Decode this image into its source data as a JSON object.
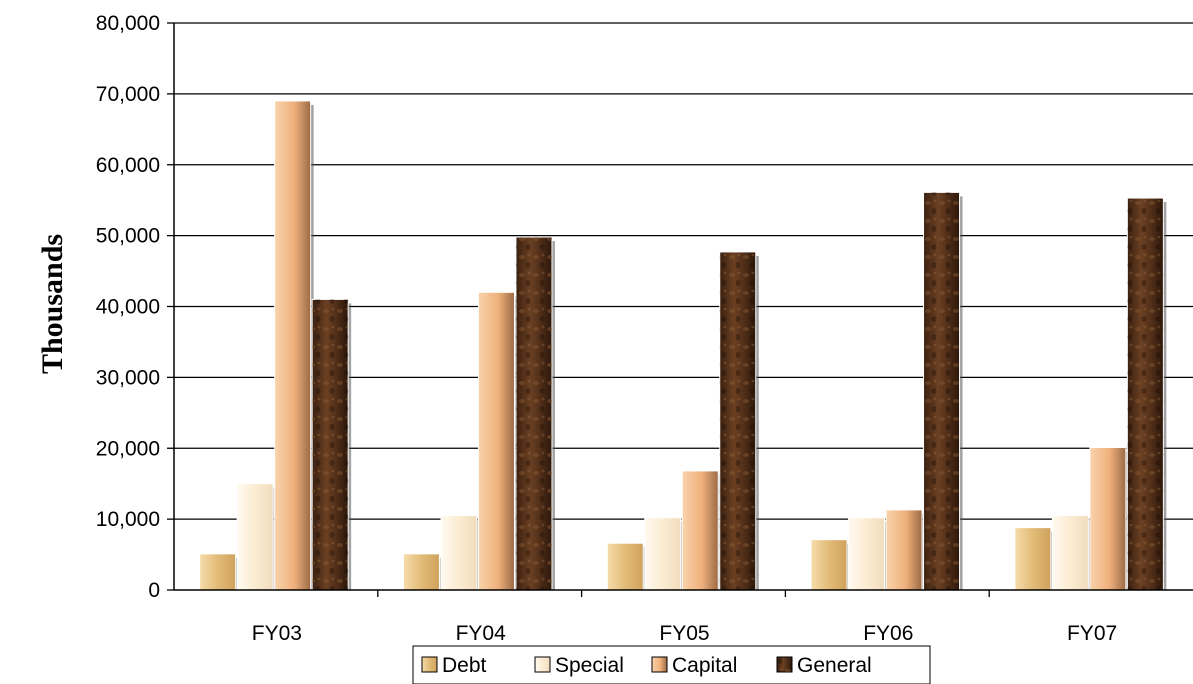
{
  "chart_data": {
    "type": "bar",
    "title": "",
    "xlabel": "",
    "ylabel": "Thousands",
    "categories": [
      "FY03",
      "FY04",
      "FY05",
      "FY06",
      "FY07"
    ],
    "ylim": [
      0,
      80000
    ],
    "yticks": [
      0,
      10000,
      20000,
      30000,
      40000,
      50000,
      60000,
      70000,
      80000
    ],
    "ytick_labels": [
      "0",
      "10,000",
      "20,000",
      "30,000",
      "40,000",
      "50,000",
      "60,000",
      "70,000",
      "80,000"
    ],
    "grid": true,
    "legend_position": "bottom",
    "series": [
      {
        "name": "Debt",
        "values": [
          5100,
          5100,
          6600,
          7100,
          8800
        ],
        "color": "#e6c07f"
      },
      {
        "name": "Special",
        "values": [
          15000,
          10500,
          10200,
          10200,
          10500
        ],
        "color": "#fbeed6"
      },
      {
        "name": "Capital",
        "values": [
          69000,
          42000,
          16800,
          11300,
          20100
        ],
        "color": "#f0b482"
      },
      {
        "name": "General",
        "values": [
          41000,
          49800,
          47700,
          56100,
          55300
        ],
        "color": "#4a2a16"
      }
    ]
  }
}
